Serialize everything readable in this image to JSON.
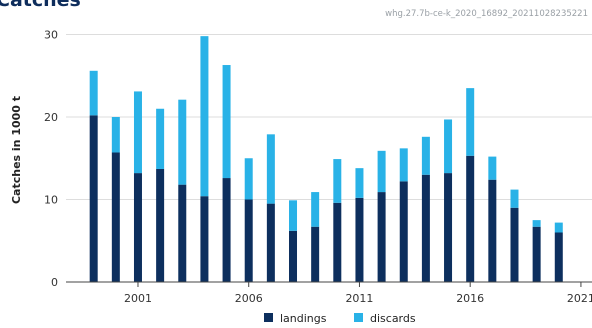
{
  "chart_data": {
    "type": "bar",
    "stacked": true,
    "title": "Catches",
    "source_id": "whg.27.7b-ce-k_2020_16892_20211028235221",
    "ylabel": "Catches in 1000 t",
    "xlabel": "",
    "ylim": [
      0,
      32
    ],
    "yticks": [
      0,
      10,
      20,
      30
    ],
    "xticks": [
      2001,
      2006,
      2011,
      2016,
      2021
    ],
    "grid": "horizontal",
    "legend_position": "bottom",
    "x": [
      1999,
      2000,
      2001,
      2002,
      2003,
      2004,
      2005,
      2006,
      2007,
      2008,
      2009,
      2010,
      2011,
      2012,
      2013,
      2014,
      2015,
      2016,
      2017,
      2018,
      2019,
      2020
    ],
    "series": [
      {
        "name": "landings",
        "color": "#0d2f5e",
        "values": [
          20.2,
          15.7,
          13.2,
          13.7,
          11.8,
          10.4,
          12.6,
          10.0,
          9.5,
          6.2,
          6.7,
          9.6,
          10.2,
          10.9,
          12.2,
          13.0,
          13.2,
          15.3,
          12.4,
          9.0,
          6.7,
          6.0
        ]
      },
      {
        "name": "discards",
        "color": "#29b2e7",
        "values": [
          5.4,
          4.3,
          9.9,
          7.3,
          10.3,
          19.4,
          13.7,
          5.0,
          8.4,
          3.7,
          4.2,
          5.3,
          3.6,
          5.0,
          4.0,
          4.6,
          6.5,
          8.2,
          2.8,
          2.2,
          0.8,
          1.2
        ]
      }
    ]
  }
}
